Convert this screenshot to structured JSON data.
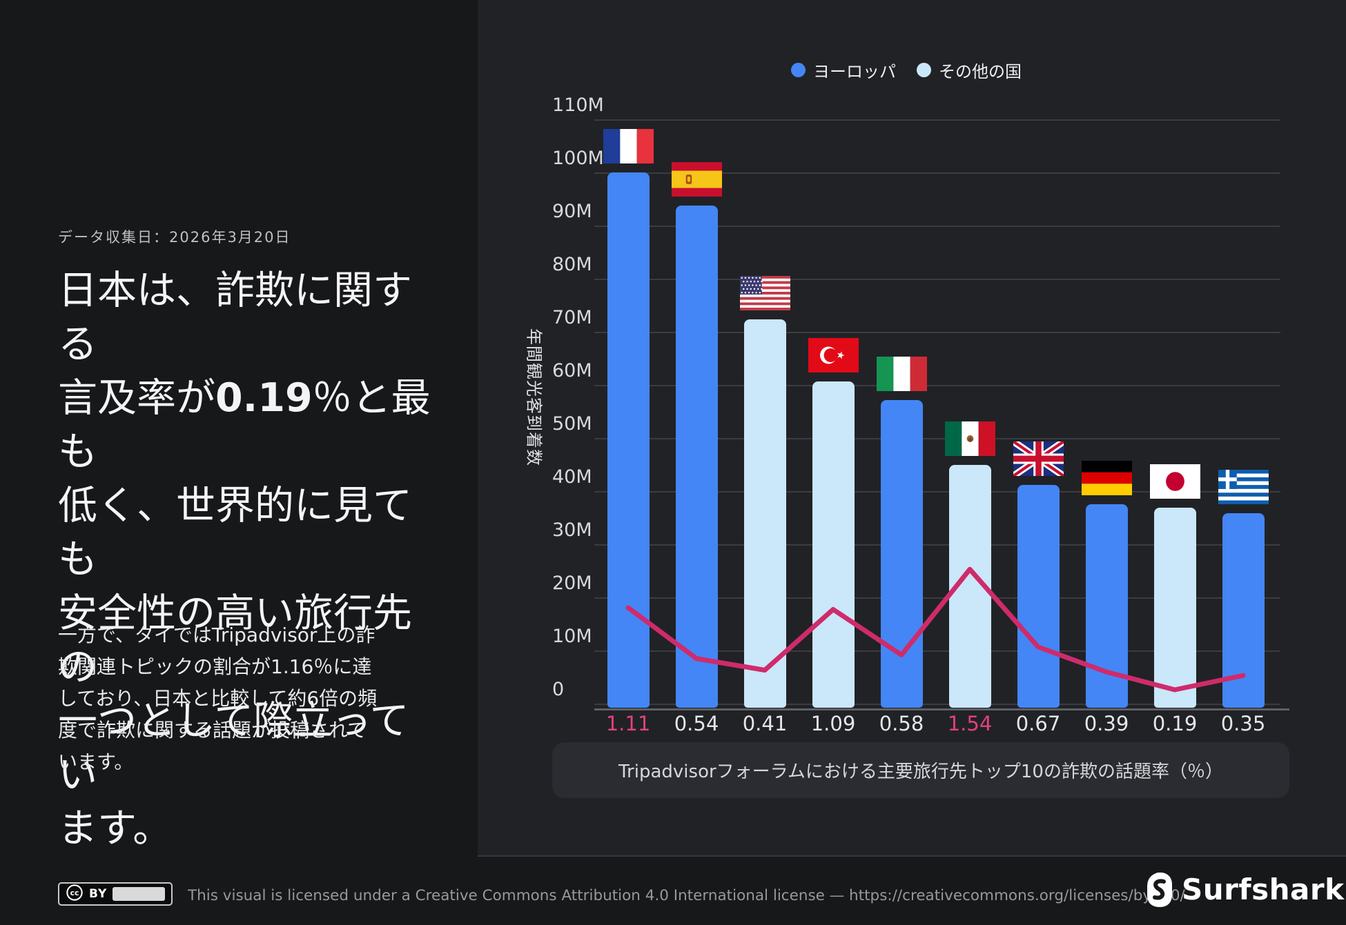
{
  "colors": {
    "page_bg": "#17181A",
    "panel_bg": "#212226",
    "europe_blue": "#4486F5",
    "other_blue": "#CBE7FA",
    "line_pink": "#CF2B6B",
    "xlabel_highlight_pink": "#E2417F"
  },
  "sidebar": {
    "date_note": "データ収集日：2026年3月20日",
    "headline_lines": [
      [
        "日本は、詐欺に関する"
      ],
      [
        "言及率が",
        {
          "b": "0.19"
        },
        "％と最も"
      ],
      [
        "低く、世界的に見ても"
      ],
      [
        "安全性の高い旅行先の"
      ],
      [
        "一つとして際立ってい"
      ],
      [
        "ます。"
      ]
    ],
    "body_text": " 一方で、タイではTripadvisor上の詐欺関連トピックの割合が1.16％に達しており、日本と比較して約6倍の頻度で詐欺に関する話題が投稿されています。"
  },
  "chart_data": {
    "type": "bar",
    "title": "",
    "categories": [
      "France",
      "Spain",
      "USA",
      "Turkey",
      "Italy",
      "Mexico",
      "UK",
      "Germany",
      "Japan",
      "Greece"
    ],
    "flags": [
      "france",
      "spain",
      "usa",
      "turkey",
      "italy",
      "mexico",
      "uk",
      "germany",
      "japan",
      "greece"
    ],
    "bar_series": {
      "name": "年間観光客到着数",
      "unit": "annual tourist arrivals (millions)",
      "values_millions": [
        100,
        93.8,
        72.4,
        60.6,
        57.2,
        45.0,
        41.2,
        37.5,
        36.9,
        35.9
      ],
      "groups": [
        "europe",
        "europe",
        "other",
        "other",
        "europe",
        "other",
        "europe",
        "europe",
        "other",
        "europe"
      ]
    },
    "line_overlay": {
      "name": "詐欺の話題率（％）",
      "values_percent": [
        1.11,
        0.54,
        0.41,
        1.09,
        0.58,
        1.54,
        0.67,
        0.39,
        0.19,
        0.35
      ],
      "highlighted_indices": [
        0,
        5
      ]
    },
    "x_tick_labels": [
      "1.11",
      "0.54",
      "0.41",
      "1.09",
      "0.58",
      "1.54",
      "0.67",
      "0.39",
      "0.19",
      "0.35"
    ],
    "y_tick_labels": [
      "0",
      "10M",
      "20M",
      "30M",
      "40M",
      "50M",
      "60M",
      "70M",
      "80M",
      "90M",
      "100M",
      "110M"
    ],
    "ylim_millions": [
      0,
      110
    ],
    "grid": true,
    "ylabel": "年間観光客到着数",
    "xlabel": "Tripadvisorフォーラムにおける主要旅行先トップ10の詐欺の話題率（％）",
    "legend": {
      "position": "top",
      "items": [
        {
          "label": "ヨーロッパ",
          "group": "europe",
          "color": "#4486F5"
        },
        {
          "label": "その他の国",
          "group": "other",
          "color": "#CBE7FA"
        }
      ]
    }
  },
  "footer": {
    "badge_label": "BY",
    "license_text": "This visual is licensed under a Creative Commons Attribution 4.0 International license — https://creativecommons.org/licenses/by/4.0/",
    "brand": "Surfshark",
    "brand_registered": "®"
  }
}
